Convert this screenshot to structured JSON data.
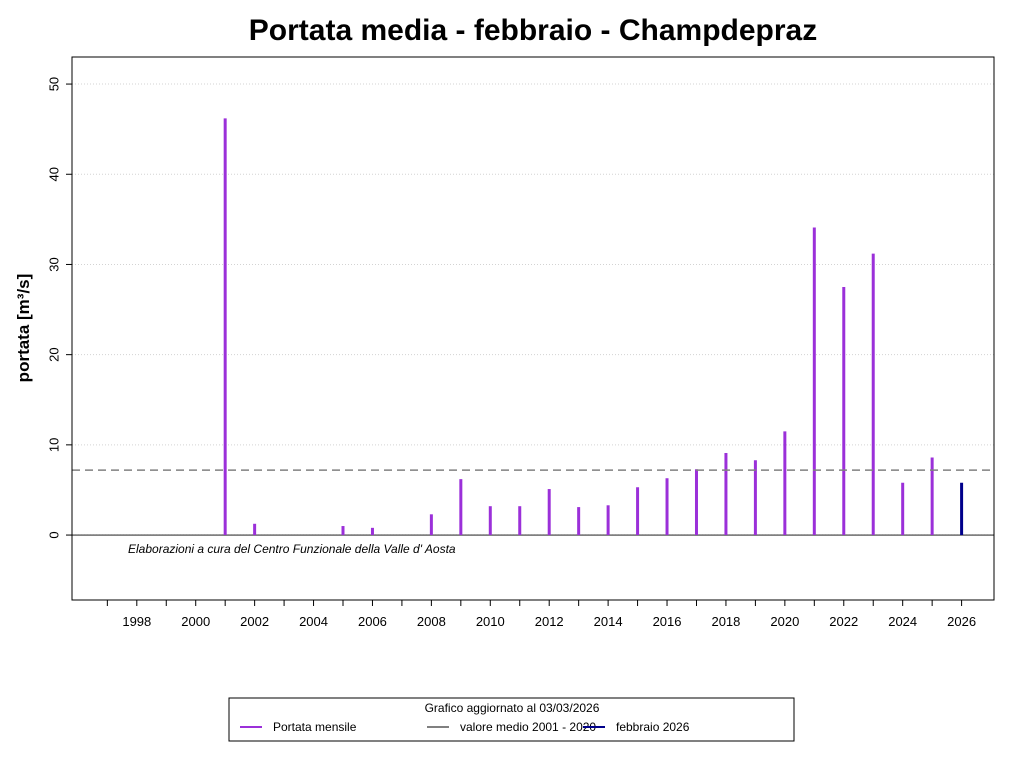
{
  "chart_data": {
    "type": "bar",
    "title": "Portata media -  febbraio - Champdepraz",
    "xlabel": "",
    "ylabel": "portata [m³/s]",
    "ylim": [
      -7.2,
      53
    ],
    "xlim": [
      1995.8,
      2027.1
    ],
    "yticks": [
      0,
      10,
      20,
      30,
      40,
      50
    ],
    "xticks": [
      1998,
      2000,
      2002,
      2004,
      2006,
      2008,
      2010,
      2012,
      2014,
      2016,
      2018,
      2020,
      2022,
      2024,
      2026
    ],
    "grid": true,
    "series": [
      {
        "name": "Portata mensile",
        "color": "#9b30d9",
        "x": [
          2001,
          2002,
          2005,
          2006,
          2008,
          2009,
          2010,
          2011,
          2012,
          2013,
          2014,
          2015,
          2016,
          2017,
          2018,
          2019,
          2020,
          2021,
          2022,
          2023,
          2024,
          2025
        ],
        "values": [
          46.2,
          1.25,
          1.0,
          0.8,
          2.3,
          6.2,
          3.2,
          3.2,
          5.1,
          3.1,
          3.3,
          5.3,
          6.3,
          7.3,
          9.1,
          8.3,
          11.5,
          34.1,
          27.5,
          31.2,
          5.8,
          8.6
        ]
      },
      {
        "name": "febbraio 2026",
        "color": "#00008b",
        "x": [
          2026
        ],
        "values": [
          5.8
        ]
      }
    ],
    "mean_line": {
      "name": "valore medio  2001 - 2020",
      "value": 7.2,
      "color": "#808080"
    },
    "annotation": "Elaborazioni a cura del Centro Funzionale della Valle d' Aosta",
    "legend": {
      "placement": "bottom",
      "title": "Grafico aggiornato al 03/03/2026",
      "entries": [
        "Portata mensile",
        "valore medio  2001 - 2020",
        "febbraio 2026"
      ]
    }
  }
}
